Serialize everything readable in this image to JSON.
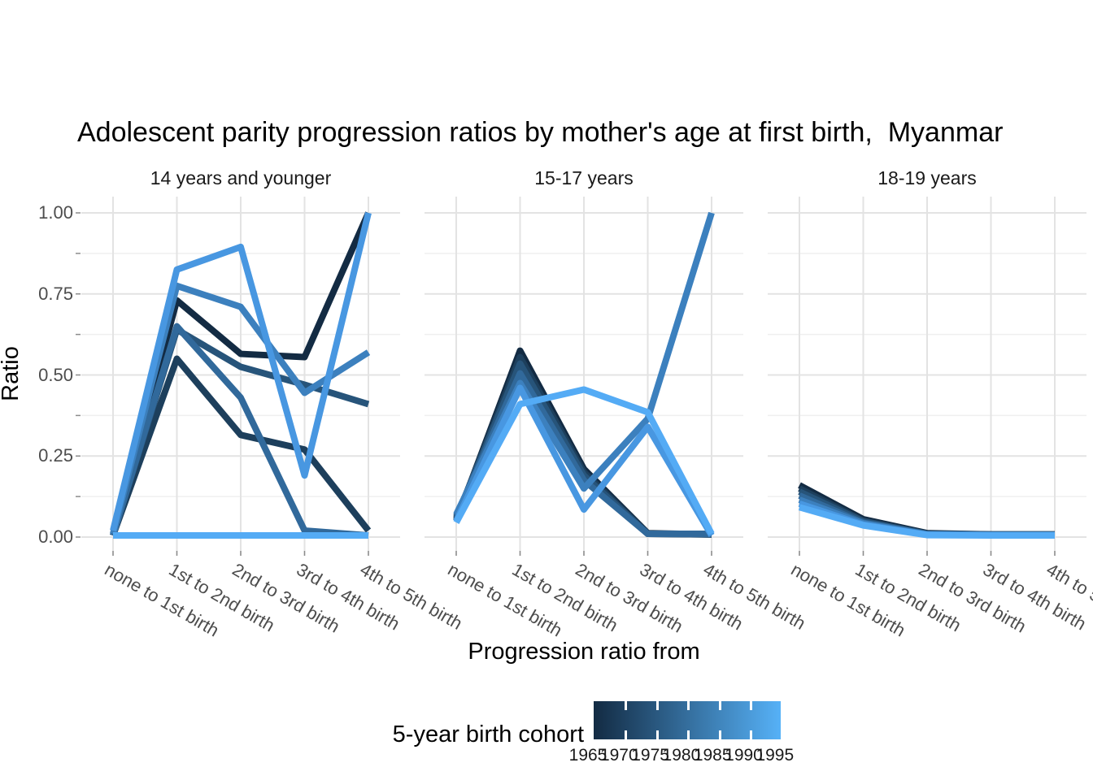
{
  "chart_data": {
    "type": "line",
    "title": "Adolescent parity progression ratios by mother's age at first birth,  Myanmar",
    "xlabel": "Progression ratio from",
    "ylabel": "Ratio",
    "ylim": [
      0,
      1
    ],
    "grid": true,
    "legend_position": "bottom",
    "categories": [
      "none to 1st birth",
      "1st to 2nd birth",
      "2nd to 3rd birth",
      "3rd to 4th birth",
      "4th to 5th birth"
    ],
    "yticks": [
      0,
      0.25,
      0.5,
      0.75,
      1
    ],
    "ytick_labels": [
      "0.00",
      "0.25",
      "0.50",
      "0.75",
      "1.00"
    ],
    "series_colors": {
      "1965": "#132B43",
      "1970": "#1D3F5C",
      "1975": "#27547A",
      "1980": "#31699B",
      "1985": "#3C80BE",
      "1990": "#4897E1",
      "1995": "#54ABF5"
    },
    "facets": [
      {
        "label": "14 years and younger",
        "series": [
          {
            "name": "1965",
            "values": [
              0.005,
              0.73,
              0.565,
              0.555,
              1.0
            ]
          },
          {
            "name": "1970",
            "values": [
              0.005,
              0.55,
              0.315,
              0.27,
              0.02
            ]
          },
          {
            "name": "1975",
            "values": [
              0.005,
              0.64,
              0.525,
              0.47,
              0.41
            ]
          },
          {
            "name": "1980",
            "values": [
              0.005,
              0.65,
              0.43,
              0.02,
              0.005
            ]
          },
          {
            "name": "1985",
            "values": [
              0.01,
              0.775,
              0.71,
              0.445,
              0.57
            ]
          },
          {
            "name": "1990",
            "values": [
              0.02,
              0.825,
              0.895,
              0.19,
              1.0
            ]
          },
          {
            "name": "1995",
            "values": [
              0.005,
              0.005,
              0.005,
              0.005,
              0.005
            ]
          }
        ]
      },
      {
        "label": "15-17 years",
        "series": [
          {
            "name": "1965",
            "values": [
              0.05,
              0.575,
              0.21,
              0.012,
              0.008
            ]
          },
          {
            "name": "1970",
            "values": [
              0.055,
              0.555,
              0.2,
              0.01,
              0.008
            ]
          },
          {
            "name": "1975",
            "values": [
              0.06,
              0.535,
              0.19,
              0.01,
              0.008
            ]
          },
          {
            "name": "1980",
            "values": [
              0.065,
              0.505,
              0.175,
              0.01,
              0.01
            ]
          },
          {
            "name": "1985",
            "values": [
              0.07,
              0.475,
              0.15,
              0.365,
              1.0
            ]
          },
          {
            "name": "1990",
            "values": [
              0.05,
              0.46,
              0.085,
              0.34,
              0.005
            ]
          },
          {
            "name": "1995",
            "values": [
              0.045,
              0.41,
              0.455,
              0.385,
              0.01
            ]
          }
        ]
      },
      {
        "label": "18-19 years",
        "series": [
          {
            "name": "1965",
            "values": [
              0.16,
              0.055,
              0.012,
              0.008,
              0.008
            ]
          },
          {
            "name": "1970",
            "values": [
              0.15,
              0.05,
              0.01,
              0.008,
              0.008
            ]
          },
          {
            "name": "1975",
            "values": [
              0.14,
              0.048,
              0.01,
              0.007,
              0.007
            ]
          },
          {
            "name": "1980",
            "values": [
              0.128,
              0.044,
              0.009,
              0.007,
              0.007
            ]
          },
          {
            "name": "1985",
            "values": [
              0.115,
              0.042,
              0.008,
              0.006,
              0.006
            ]
          },
          {
            "name": "1990",
            "values": [
              0.103,
              0.038,
              0.007,
              0.006,
              0.006
            ]
          },
          {
            "name": "1995",
            "values": [
              0.092,
              0.036,
              0.006,
              0.005,
              0.005
            ]
          }
        ]
      }
    ],
    "legend": {
      "title": "5-year birth cohort",
      "type": "colorbar",
      "labels": [
        "1965",
        "1970",
        "1975",
        "1980",
        "1985",
        "1990",
        "1995"
      ],
      "gradient_start": "#132B43",
      "gradient_end": "#56B1F7"
    }
  }
}
